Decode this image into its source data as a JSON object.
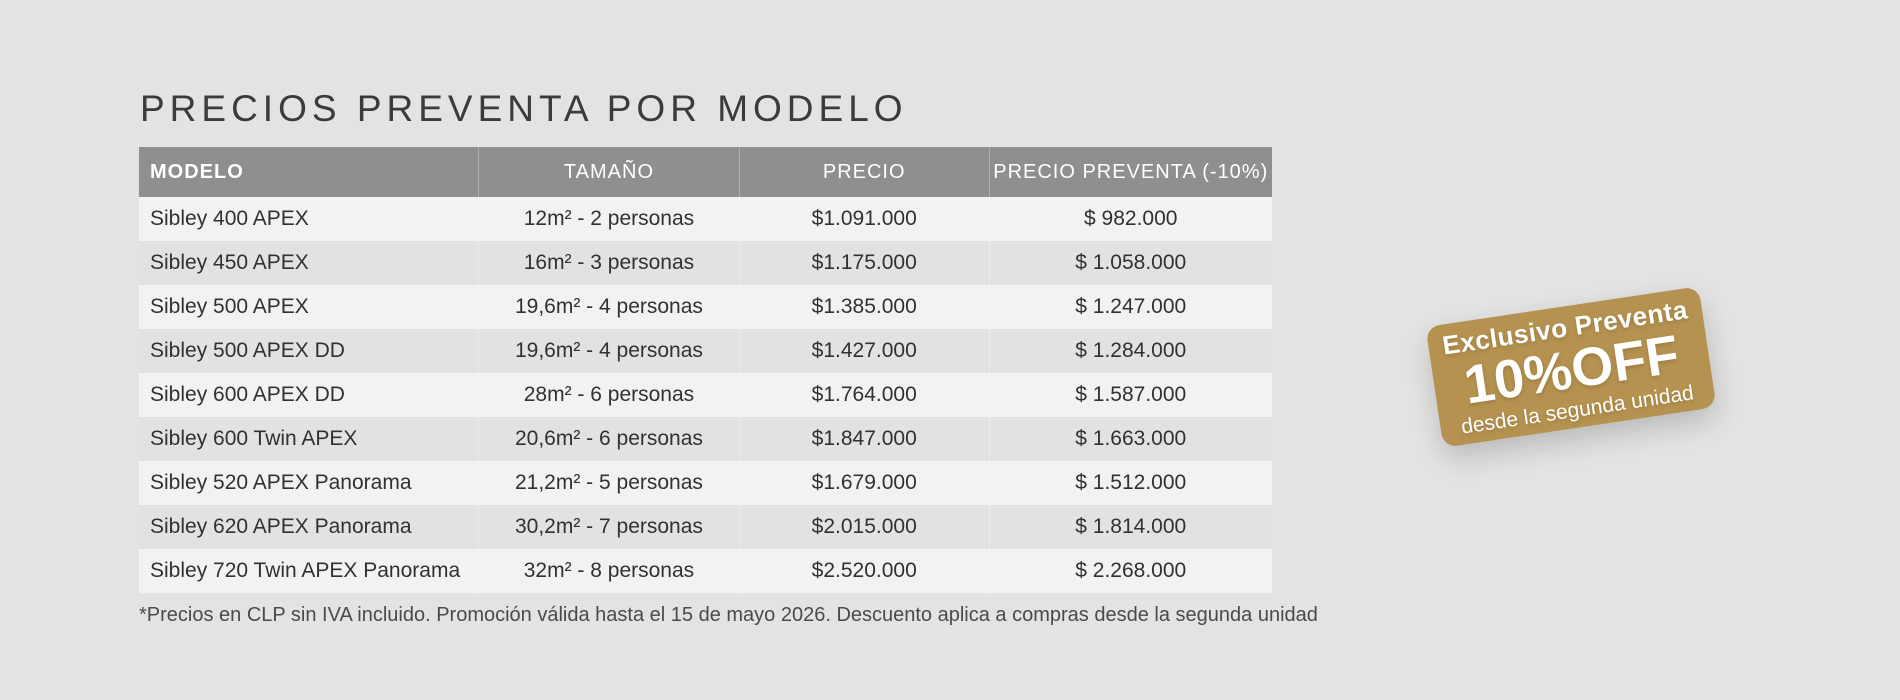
{
  "page": {
    "background_color": "#e3e3e3"
  },
  "title": "PRECIOS PREVENTA POR MODELO",
  "table": {
    "header_bg": "#8f8f8f",
    "odd_row_color": "#f2f2f1",
    "even_row_color": "#e2e2e1",
    "headers": [
      "MODELO",
      "TAMAÑO",
      "PRECIO",
      "PRECIO PREVENTA (-10%)"
    ],
    "rows": [
      {
        "modelo": "Sibley 400 APEX",
        "tamano": "12m² - 2 personas",
        "precio": "$1.091.000",
        "preventa": "$ 982.000"
      },
      {
        "modelo": "Sibley 450 APEX",
        "tamano": "16m² - 3 personas",
        "precio": "$1.175.000",
        "preventa": "$ 1.058.000"
      },
      {
        "modelo": "Sibley 500 APEX",
        "tamano": "19,6m² - 4 personas",
        "precio": "$1.385.000",
        "preventa": "$ 1.247.000"
      },
      {
        "modelo": "Sibley 500 APEX DD",
        "tamano": "19,6m² - 4 personas",
        "precio": "$1.427.000",
        "preventa": "$ 1.284.000"
      },
      {
        "modelo": "Sibley 600 APEX DD",
        "tamano": "28m² - 6 personas",
        "precio": "$1.764.000",
        "preventa": "$ 1.587.000"
      },
      {
        "modelo": "Sibley 600 Twin APEX",
        "tamano": "20,6m² - 6 personas",
        "precio": "$1.847.000",
        "preventa": "$ 1.663.000"
      },
      {
        "modelo": "Sibley 520 APEX Panorama",
        "tamano": "21,2m² - 5 personas",
        "precio": "$1.679.000",
        "preventa": "$ 1.512.000"
      },
      {
        "modelo": "Sibley 620 APEX Panorama",
        "tamano": "30,2m² - 7 personas",
        "precio": "$2.015.000",
        "preventa": "$ 1.814.000"
      },
      {
        "modelo": "Sibley 720 Twin APEX Panorama",
        "tamano": "32m² - 8 personas",
        "precio": "$2.520.000",
        "preventa": "$ 2.268.000"
      }
    ]
  },
  "footnote": "*Precios en CLP sin IVA incluido. Promoción válida hasta el 15 de mayo 2026. Descuento aplica a compras desde la segunda unidad",
  "badge": {
    "color": "#b5924f",
    "line1": "Exclusivo Preventa",
    "line2": "10%OFF",
    "line3": "desde la segunda unidad"
  }
}
